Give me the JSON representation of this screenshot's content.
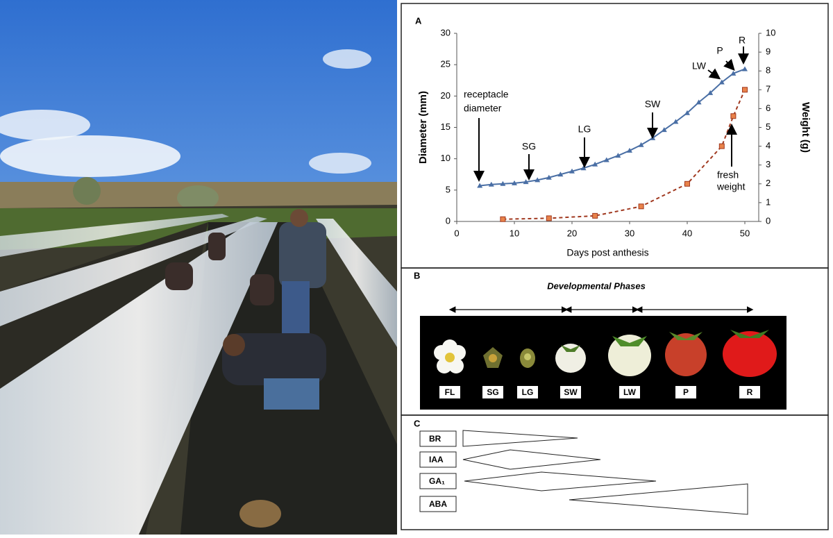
{
  "chart_data": {
    "type": "line",
    "panel_label": "A",
    "x_label": "Days post anthesis",
    "y_label": "Diameter (mm)",
    "y2_label": "Weight (g)",
    "xlim": [
      0,
      50
    ],
    "xticks": [
      0,
      10,
      20,
      30,
      40,
      50
    ],
    "ylim": [
      0,
      30
    ],
    "yticks": [
      0,
      5,
      10,
      15,
      20,
      25,
      30
    ],
    "y2lim": [
      0,
      10
    ],
    "y2ticks": [
      0,
      1,
      2,
      3,
      4,
      5,
      6,
      7,
      8,
      9,
      10
    ],
    "series": [
      {
        "color": "#4a6fa5",
        "marker": "triangle",
        "dash": false,
        "x": [
          4,
          6,
          8,
          10,
          12,
          14,
          16,
          18,
          20,
          22,
          24,
          26,
          28,
          30,
          32,
          34,
          36,
          38,
          40,
          42,
          44,
          46,
          48,
          50
        ],
        "values": [
          5.7,
          5.9,
          6.0,
          6.1,
          6.3,
          6.6,
          7.0,
          7.5,
          8.0,
          8.5,
          9.1,
          9.8,
          10.5,
          11.3,
          12.2,
          13.3,
          14.6,
          15.9,
          17.3,
          19.0,
          20.5,
          22.2,
          23.6,
          24.3
        ]
      },
      {
        "color": "#a0381f",
        "marker": "square",
        "dash": true,
        "axis": "y2",
        "x": [
          8,
          16,
          24,
          32,
          40,
          46,
          48,
          50
        ],
        "values": [
          0.12,
          0.17,
          0.3,
          0.8,
          2.0,
          4.0,
          5.6,
          7.0
        ]
      }
    ],
    "annotations": [
      "receptacle",
      "diameter",
      "SG",
      "LG",
      "SW",
      "LW",
      "P",
      "R",
      "fresh",
      "weight"
    ]
  },
  "panel_b": {
    "label": "B",
    "title": "Developmental Phases",
    "stages": [
      "FL",
      "SG",
      "LG",
      "SW",
      "LW",
      "P",
      "R"
    ]
  },
  "panel_c": {
    "label": "C",
    "hormones": [
      "BR",
      "IAA",
      "GA₁",
      "ABA"
    ]
  }
}
